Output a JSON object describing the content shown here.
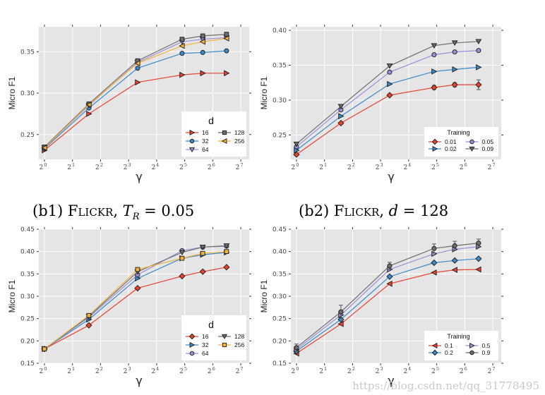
{
  "captions": {
    "b1": {
      "prefix": "(b1) ",
      "dataset": "Flickr",
      "sep": ", ",
      "var": "T",
      "sub": "R",
      "eq": " = 0.05"
    },
    "b2": {
      "prefix": "(b2) ",
      "dataset": "Flickr",
      "sep": ", ",
      "var": "d",
      "eq": " = 128"
    }
  },
  "watermark": "https://blog.csdn.net/qq_31778495",
  "colors": {
    "panel_bg": "#e5e5e5",
    "grid": "#ffffff",
    "red": "#e8422f",
    "blue": "#3a89c9",
    "purple": "#9a8ed8",
    "gray": "#6d6d6d",
    "orange": "#f3b23a"
  },
  "chart_data": [
    {
      "id": "top-left",
      "type": "line",
      "ylabel": "Micro F1",
      "xlabel": "γ",
      "xscale": "log2",
      "xticks": [
        "2^0",
        "2^1",
        "2^2",
        "2^3",
        "2^4",
        "2^5",
        "2^6",
        "2^7"
      ],
      "ylim": [
        0.22,
        0.38
      ],
      "yticks": [
        "0.25",
        "0.30",
        "0.35"
      ],
      "x": [
        1,
        3,
        10,
        30,
        50,
        90
      ],
      "legend": {
        "title": "d",
        "position": "bottom-right",
        "columns": 2
      },
      "series": [
        {
          "name": "16",
          "color": "#e8422f",
          "marker": "triangle-right",
          "values": [
            0.231,
            0.275,
            0.313,
            0.322,
            0.324,
            0.324
          ]
        },
        {
          "name": "32",
          "color": "#3a89c9",
          "marker": "circle",
          "values": [
            0.233,
            0.282,
            0.33,
            0.348,
            0.349,
            0.351
          ]
        },
        {
          "name": "64",
          "color": "#9a8ed8",
          "marker": "triangle-down",
          "values": [
            0.234,
            0.285,
            0.337,
            0.362,
            0.365,
            0.367
          ]
        },
        {
          "name": "128",
          "color": "#6d6d6d",
          "marker": "square",
          "values": [
            0.235,
            0.287,
            0.339,
            0.365,
            0.369,
            0.371
          ]
        },
        {
          "name": "256",
          "color": "#f3b23a",
          "marker": "triangle-left",
          "values": [
            0.234,
            0.286,
            0.336,
            0.357,
            0.362,
            0.366
          ]
        }
      ]
    },
    {
      "id": "top-right",
      "type": "line",
      "ylabel": "Micro F1",
      "xlabel": "γ",
      "xscale": "log2",
      "xticks": [
        "2^0",
        "2^1",
        "2^2",
        "2^3",
        "2^4",
        "2^5",
        "2^6",
        "2^7"
      ],
      "ylim": [
        0.215,
        0.405
      ],
      "yticks": [
        "0.25",
        "0.30",
        "0.35",
        "0.40"
      ],
      "x": [
        1,
        3,
        10,
        30,
        50,
        90
      ],
      "legend": {
        "title": "Training",
        "position": "bottom-right",
        "columns": 2
      },
      "series": [
        {
          "name": "0.01",
          "color": "#e8422f",
          "marker": "diamond",
          "values": [
            0.222,
            0.267,
            0.307,
            0.318,
            0.322,
            0.322
          ],
          "error": [
            0,
            0,
            0,
            0.003,
            0.003,
            0.007
          ]
        },
        {
          "name": "0.02",
          "color": "#3a89c9",
          "marker": "triangle-right",
          "values": [
            0.228,
            0.277,
            0.323,
            0.341,
            0.344,
            0.347
          ]
        },
        {
          "name": "0.05",
          "color": "#9a8ed8",
          "marker": "circle",
          "values": [
            0.233,
            0.286,
            0.34,
            0.365,
            0.369,
            0.371
          ]
        },
        {
          "name": "0.09",
          "color": "#6d6d6d",
          "marker": "triangle-down",
          "values": [
            0.237,
            0.291,
            0.349,
            0.378,
            0.382,
            0.384
          ]
        }
      ]
    },
    {
      "id": "bottom-left",
      "type": "line",
      "ylabel": "Micro F1",
      "xlabel": "γ",
      "xscale": "log2",
      "xticks": [
        "2^0",
        "2^1",
        "2^2",
        "2^3",
        "2^4",
        "2^5",
        "2^6",
        "2^7"
      ],
      "ylim": [
        0.15,
        0.45
      ],
      "yticks": [
        "0.15",
        "0.20",
        "0.25",
        "0.30",
        "0.35",
        "0.40",
        "0.45"
      ],
      "x": [
        1,
        3,
        10,
        30,
        50,
        90
      ],
      "legend": {
        "title": "d",
        "position": "bottom-right",
        "columns": 2
      },
      "series": [
        {
          "name": "16",
          "color": "#e8422f",
          "marker": "diamond",
          "values": [
            0.182,
            0.235,
            0.318,
            0.345,
            0.355,
            0.365
          ]
        },
        {
          "name": "32",
          "color": "#3a89c9",
          "marker": "triangle-right",
          "values": [
            0.182,
            0.248,
            0.34,
            0.385,
            0.393,
            0.398
          ]
        },
        {
          "name": "64",
          "color": "#9a8ed8",
          "marker": "circle",
          "values": [
            0.182,
            0.253,
            0.348,
            0.402,
            0.41,
            0.412
          ]
        },
        {
          "name": "128",
          "color": "#6d6d6d",
          "marker": "triangle-down",
          "values": [
            0.182,
            0.255,
            0.355,
            0.398,
            0.41,
            0.413
          ]
        },
        {
          "name": "256",
          "color": "#f3b23a",
          "marker": "square",
          "values": [
            0.182,
            0.257,
            0.36,
            0.385,
            0.396,
            0.4
          ]
        }
      ]
    },
    {
      "id": "bottom-right",
      "type": "line",
      "ylabel": "Micro F1",
      "xlabel": "γ",
      "xscale": "log2",
      "xticks": [
        "2^0",
        "2^1",
        "2^2",
        "2^3",
        "2^4",
        "2^5",
        "2^6",
        "2^7"
      ],
      "ylim": [
        0.15,
        0.45
      ],
      "yticks": [
        "0.15",
        "0.20",
        "0.25",
        "0.30",
        "0.35",
        "0.40",
        "0.45"
      ],
      "x": [
        1,
        3,
        10,
        30,
        50,
        90
      ],
      "legend": {
        "title": "Training",
        "position": "bottom-right",
        "columns": 2
      },
      "series": [
        {
          "name": "0.1",
          "color": "#e8422f",
          "marker": "triangle-left",
          "values": [
            0.172,
            0.238,
            0.328,
            0.353,
            0.359,
            0.36
          ]
        },
        {
          "name": "0.2",
          "color": "#3a89c9",
          "marker": "diamond",
          "values": [
            0.177,
            0.248,
            0.344,
            0.375,
            0.38,
            0.384
          ]
        },
        {
          "name": "0.5",
          "color": "#9a8ed8",
          "marker": "triangle-right",
          "values": [
            0.181,
            0.258,
            0.36,
            0.395,
            0.405,
            0.411
          ]
        },
        {
          "name": "0.9",
          "color": "#6d6d6d",
          "marker": "circle",
          "values": [
            0.185,
            0.265,
            0.368,
            0.407,
            0.413,
            0.419
          ],
          "error": [
            0.008,
            0.015,
            0.008,
            0.01,
            0.01,
            0.009
          ]
        }
      ]
    }
  ]
}
